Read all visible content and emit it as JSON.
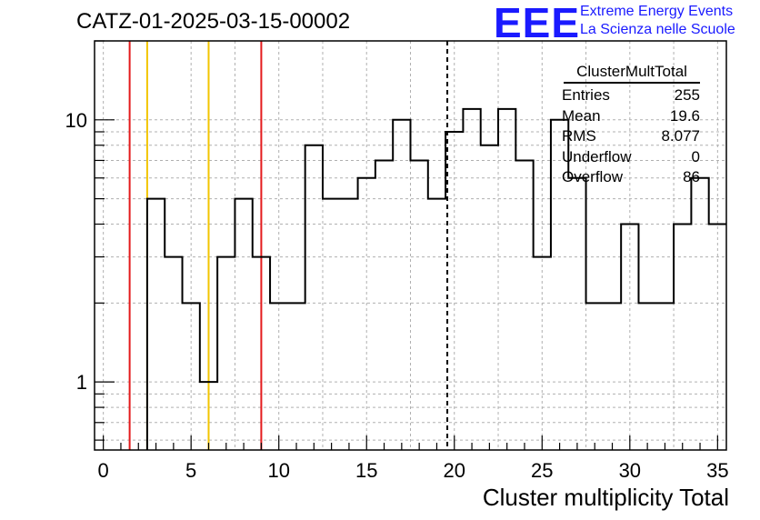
{
  "chart_data": {
    "type": "histogram",
    "title": "CATZ-01-2025-03-15-00002",
    "xlabel": "Cluster multiplicity Total",
    "ylabel": "",
    "x_range": [
      -0.5,
      35.5
    ],
    "ylim": [
      0.55,
      20
    ],
    "y_scale": "log",
    "grid": true,
    "bin_edges": [
      2.5,
      3.5,
      4.5,
      5.5,
      6.5,
      7.5,
      8.5,
      9.5,
      10.5,
      11.5,
      12.5,
      13.5,
      14.5,
      15.5,
      16.5,
      17.5,
      18.5,
      19.5,
      20.5,
      21.5,
      22.5,
      23.5,
      24.5,
      25.5,
      26.5,
      27.5,
      28.5,
      29.5,
      30.5,
      31.5,
      32.5,
      33.5,
      34.5,
      35.5
    ],
    "counts": [
      5,
      3,
      2,
      1,
      3,
      5,
      3,
      2,
      2,
      8,
      5,
      5,
      6,
      7,
      10,
      7,
      5,
      9,
      11,
      8,
      11,
      7,
      3,
      10,
      6,
      2,
      2,
      4,
      2,
      2,
      4,
      6,
      4
    ],
    "x_ticks": [
      0,
      5,
      10,
      15,
      20,
      25,
      30,
      35
    ],
    "y_ticks": [
      1,
      10
    ],
    "vertical_lines": [
      {
        "x": 1.5,
        "color": "#e41a1c",
        "style": "solid"
      },
      {
        "x": 2.5,
        "color": "#f2c500",
        "style": "solid"
      },
      {
        "x": 6.0,
        "color": "#f2c500",
        "style": "solid"
      },
      {
        "x": 9.0,
        "color": "#e41a1c",
        "style": "solid"
      },
      {
        "x": 19.6,
        "color": "#000000",
        "style": "dashed"
      }
    ],
    "stats_box": {
      "title": "ClusterMultTotal",
      "rows": [
        {
          "label": "Entries",
          "value": "255"
        },
        {
          "label": "Mean",
          "value": "19.6"
        },
        {
          "label": "RMS",
          "value": "8.077"
        },
        {
          "label": "Underflow",
          "value": "0"
        },
        {
          "label": "Overflow",
          "value": "86"
        }
      ]
    }
  },
  "logo": {
    "mark": "EEE",
    "line1": "Extreme Energy Events",
    "line2": "La Scienza nelle Scuole"
  }
}
